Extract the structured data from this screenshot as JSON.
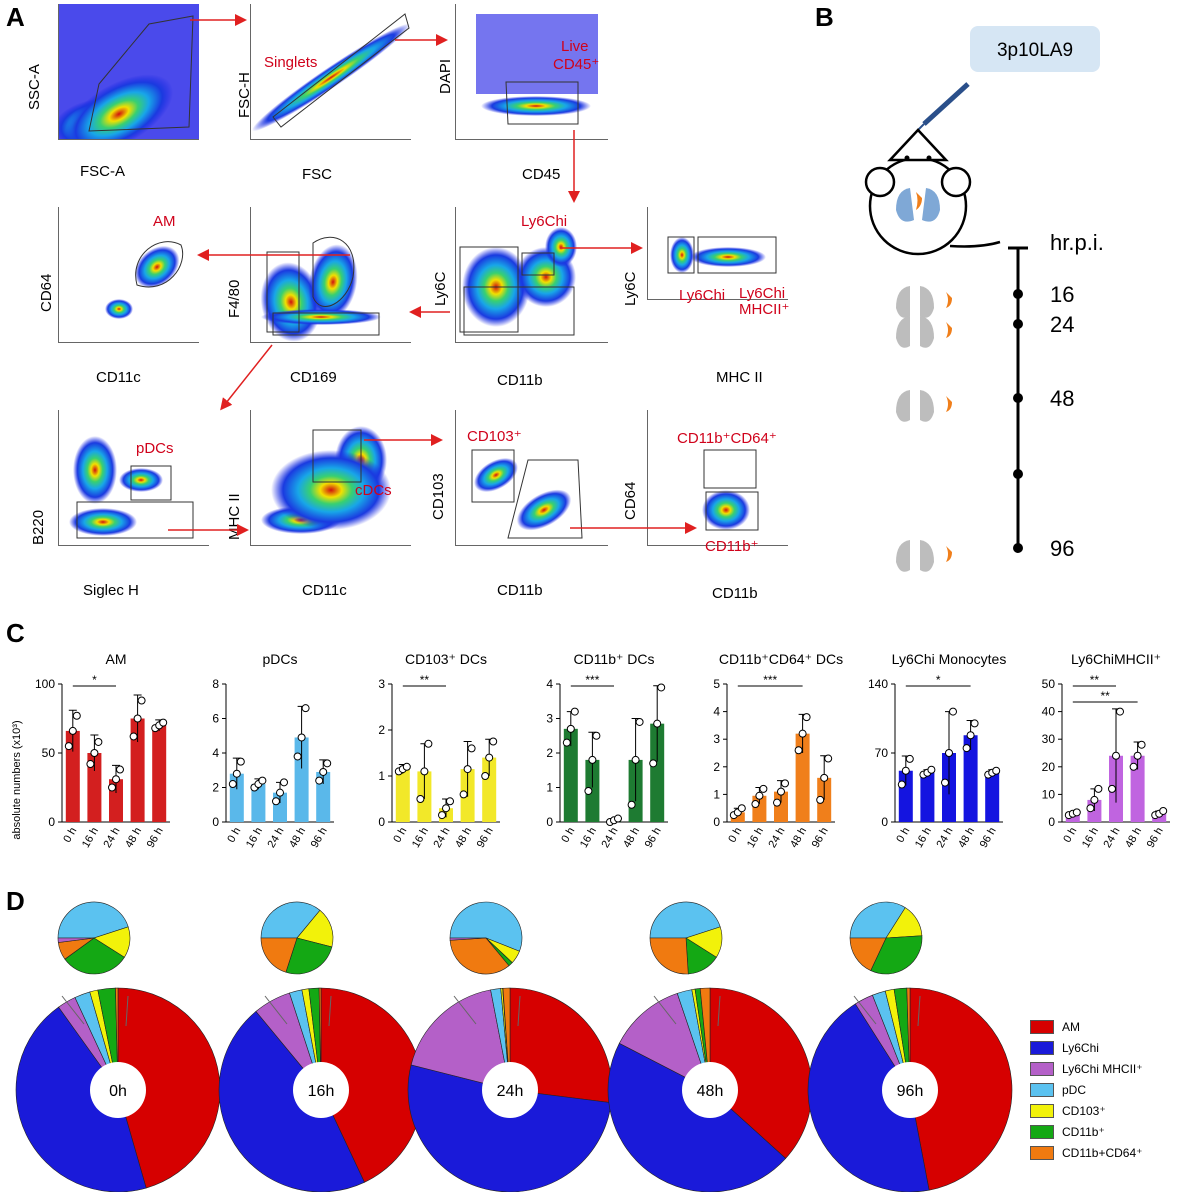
{
  "panels": {
    "a": "A",
    "b": "B",
    "c": "C",
    "d": "D"
  },
  "panel_a": {
    "plots": [
      {
        "id": "fsc-ssc",
        "y": "SSC-A",
        "x": "FSC-A",
        "gates": []
      },
      {
        "id": "singlets",
        "y": "FSC-H",
        "x": "FSC",
        "gates": [
          "Singlets"
        ]
      },
      {
        "id": "live",
        "y": "DAPI",
        "x": "CD45",
        "gates": [
          "Live",
          "CD45⁺"
        ]
      },
      {
        "id": "am",
        "y": "CD64",
        "x": "CD11c",
        "gates": [
          "AM"
        ]
      },
      {
        "id": "f480",
        "y": "F4/80",
        "x": "CD169",
        "gates": []
      },
      {
        "id": "ly6c",
        "y": "Ly6C",
        "x": "CD11b",
        "gates": [
          "Ly6Chi"
        ]
      },
      {
        "id": "mhc",
        "y": "Ly6C",
        "x": "MHC II",
        "gates": [
          "Ly6Chi",
          "Ly6Chi",
          "MHCII⁺"
        ]
      },
      {
        "id": "pdc",
        "y": "B220",
        "x": "Siglec H",
        "gates": [
          "pDCs"
        ]
      },
      {
        "id": "cdc",
        "y": "MHC II",
        "x": "CD11c",
        "gates": [
          "cDCs"
        ]
      },
      {
        "id": "cd103",
        "y": "CD103",
        "x": "CD11b",
        "gates": [
          "CD103⁺"
        ]
      },
      {
        "id": "cd64",
        "y": "CD64",
        "x": "CD11b",
        "gates": [
          "CD11b⁺CD64⁺",
          "CD11b⁺"
        ]
      }
    ]
  },
  "panel_b": {
    "strain": "3p10LA9",
    "axis_label": "hr.p.i.",
    "timepoints": [
      "16",
      "24",
      "48",
      "96"
    ]
  },
  "chart_data": [
    {
      "type": "bar",
      "title": "AM",
      "categories": [
        "0 h",
        "16 h",
        "24 h",
        "48 h",
        "96 h"
      ],
      "values": [
        66,
        50,
        31,
        75,
        70
      ],
      "errors": [
        15,
        13,
        10,
        17,
        4
      ],
      "points": [
        [
          55,
          66,
          77
        ],
        [
          42,
          50,
          58
        ],
        [
          25,
          31,
          38
        ],
        [
          62,
          75,
          88
        ],
        [
          68,
          70,
          72
        ]
      ],
      "ylim": [
        0,
        100
      ],
      "yticks": [
        0,
        50,
        100
      ],
      "ylabel": "absolute numbers (x10³)",
      "color": "#d31f1f",
      "sig": [
        {
          "from": 0,
          "to": 2,
          "label": "*"
        }
      ]
    },
    {
      "type": "bar",
      "title": "pDCs",
      "categories": [
        "0 h",
        "16 h",
        "24 h",
        "48 h",
        "96 h"
      ],
      "values": [
        2.8,
        2.2,
        1.7,
        4.9,
        2.9
      ],
      "errors": [
        0.9,
        0.3,
        0.6,
        1.8,
        0.7
      ],
      "points": [
        [
          2.2,
          2.8,
          3.5
        ],
        [
          2.0,
          2.2,
          2.4
        ],
        [
          1.2,
          1.7,
          2.3
        ],
        [
          3.8,
          4.9,
          6.6
        ],
        [
          2.4,
          2.9,
          3.4
        ]
      ],
      "ylim": [
        0,
        8
      ],
      "yticks": [
        0,
        2,
        4,
        6,
        8
      ],
      "color": "#5ab8ea",
      "sig": []
    },
    {
      "type": "bar",
      "title": "CD103⁺ DCs",
      "categories": [
        "0 h",
        "16 h",
        "24 h",
        "48 h",
        "96 h"
      ],
      "values": [
        1.15,
        1.1,
        0.3,
        1.15,
        1.4
      ],
      "errors": [
        0.1,
        0.6,
        0.2,
        0.6,
        0.4
      ],
      "points": [
        [
          1.1,
          1.15,
          1.2
        ],
        [
          0.5,
          1.1,
          1.7
        ],
        [
          0.15,
          0.3,
          0.45
        ],
        [
          0.6,
          1.15,
          1.6
        ],
        [
          1.0,
          1.4,
          1.75
        ]
      ],
      "ylim": [
        0,
        3
      ],
      "yticks": [
        0,
        1,
        2,
        3
      ],
      "color": "#f2e829",
      "sig": [
        {
          "from": 0,
          "to": 2,
          "label": "**"
        }
      ]
    },
    {
      "type": "bar",
      "title": "CD11b⁺ DCs",
      "categories": [
        "0 h",
        "16 h",
        "24 h",
        "48 h",
        "96 h"
      ],
      "values": [
        2.7,
        1.8,
        0.05,
        1.8,
        2.85
      ],
      "errors": [
        0.5,
        0.8,
        0.05,
        1.2,
        1.1
      ],
      "points": [
        [
          2.3,
          2.7,
          3.2
        ],
        [
          0.9,
          1.8,
          2.5
        ],
        [
          0.0,
          0.05,
          0.1
        ],
        [
          0.5,
          1.8,
          2.9
        ],
        [
          1.7,
          2.85,
          3.9
        ]
      ],
      "ylim": [
        0,
        4
      ],
      "yticks": [
        0,
        1,
        2,
        3,
        4
      ],
      "color": "#1e7b32",
      "sig": [
        {
          "from": 0,
          "to": 2,
          "label": "***"
        }
      ]
    },
    {
      "type": "bar",
      "title": "CD11b⁺CD64⁺ DCs",
      "categories": [
        "0 h",
        "16 h",
        "24 h",
        "48 h",
        "96 h"
      ],
      "values": [
        0.35,
        0.95,
        1.1,
        3.2,
        1.6
      ],
      "errors": [
        0.15,
        0.3,
        0.4,
        0.7,
        0.8
      ],
      "points": [
        [
          0.25,
          0.35,
          0.5
        ],
        [
          0.65,
          0.95,
          1.2
        ],
        [
          0.7,
          1.1,
          1.4
        ],
        [
          2.6,
          3.2,
          3.8
        ],
        [
          0.8,
          1.6,
          2.3
        ]
      ],
      "ylim": [
        0,
        5
      ],
      "yticks": [
        0,
        1,
        2,
        3,
        4,
        5
      ],
      "color": "#f07f1b",
      "sig": [
        {
          "from": 0,
          "to": 3,
          "label": "***"
        }
      ]
    },
    {
      "type": "bar",
      "title": "Ly6Chi Monocytes",
      "categories": [
        "0 h",
        "16 h",
        "24 h",
        "48 h",
        "96 h"
      ],
      "values": [
        52,
        50,
        70,
        88,
        50
      ],
      "errors": [
        15,
        3,
        42,
        15,
        3
      ],
      "points": [
        [
          38,
          52,
          64
        ],
        [
          48,
          50,
          53
        ],
        [
          40,
          70,
          112
        ],
        [
          75,
          88,
          100
        ],
        [
          48,
          50,
          52
        ]
      ],
      "ylim": [
        0,
        140
      ],
      "yticks": [
        0,
        70,
        140
      ],
      "color": "#1414e0",
      "sig": [
        {
          "from": 0,
          "to": 3,
          "label": "*"
        }
      ]
    },
    {
      "type": "bar",
      "title": "Ly6ChiMHCII⁺",
      "categories": [
        "0 h",
        "16 h",
        "24 h",
        "48 h",
        "96 h"
      ],
      "values": [
        3,
        8,
        24,
        24,
        3
      ],
      "errors": [
        0.5,
        4,
        17,
        5,
        1
      ],
      "points": [
        [
          2.5,
          3,
          3.5
        ],
        [
          5,
          8,
          12
        ],
        [
          12,
          24,
          40
        ],
        [
          20,
          24,
          28
        ],
        [
          2.5,
          3,
          4
        ]
      ],
      "ylim": [
        0,
        50
      ],
      "yticks": [
        0,
        10,
        20,
        30,
        40,
        50
      ],
      "color": "#c064e0",
      "sig": [
        {
          "from": 0,
          "to": 2,
          "label": "**"
        },
        {
          "from": 0,
          "to": 3,
          "label": "**"
        }
      ]
    },
    {
      "type": "pie",
      "title": "Panel D donuts",
      "categories": [
        "AM",
        "Ly6Chi",
        "Ly6Chi MHCII⁺",
        "pDC",
        "CD103⁺",
        "CD11b⁺",
        "CD11b+CD64⁺"
      ],
      "colors": [
        "#d60000",
        "#1a1ad9",
        "#b460c8",
        "#5bc2f0",
        "#f2f20a",
        "#14a814",
        "#f07a10"
      ],
      "series": [
        {
          "name": "0h",
          "values": [
            46,
            45,
            3,
            2.5,
            1.3,
            2.8,
            0.4
          ]
        },
        {
          "name": "16h",
          "values": [
            43,
            46,
            6,
            2,
            1.1,
            1.6,
            0.3
          ]
        },
        {
          "name": "24h",
          "values": [
            27,
            52,
            18,
            1.6,
            0.3,
            0.05,
            1.1
          ]
        },
        {
          "name": "48h",
          "values": [
            36,
            45,
            12,
            2.3,
            0.5,
            0.8,
            1.5
          ]
        },
        {
          "name": "96h",
          "values": [
            47,
            44,
            3,
            2.1,
            1.4,
            2.0,
            0.5
          ]
        }
      ],
      "insets": [
        {
          "name": "0h",
          "values": [
            45,
            14,
            31,
            8,
            2
          ]
        },
        {
          "name": "16h",
          "values": [
            36,
            18,
            26,
            20,
            0
          ]
        },
        {
          "name": "24h",
          "values": [
            56,
            6,
            2,
            35,
            1
          ]
        },
        {
          "name": "48h",
          "values": [
            45,
            14,
            15,
            26,
            0
          ]
        },
        {
          "name": "96h",
          "values": [
            34,
            15,
            33,
            18,
            0
          ]
        }
      ]
    }
  ],
  "legend": [
    "AM",
    "Ly6Chi",
    "Ly6Chi MHCII⁺",
    "pDC",
    "CD103⁺",
    "CD11b⁺",
    "CD11b+CD64⁺"
  ]
}
